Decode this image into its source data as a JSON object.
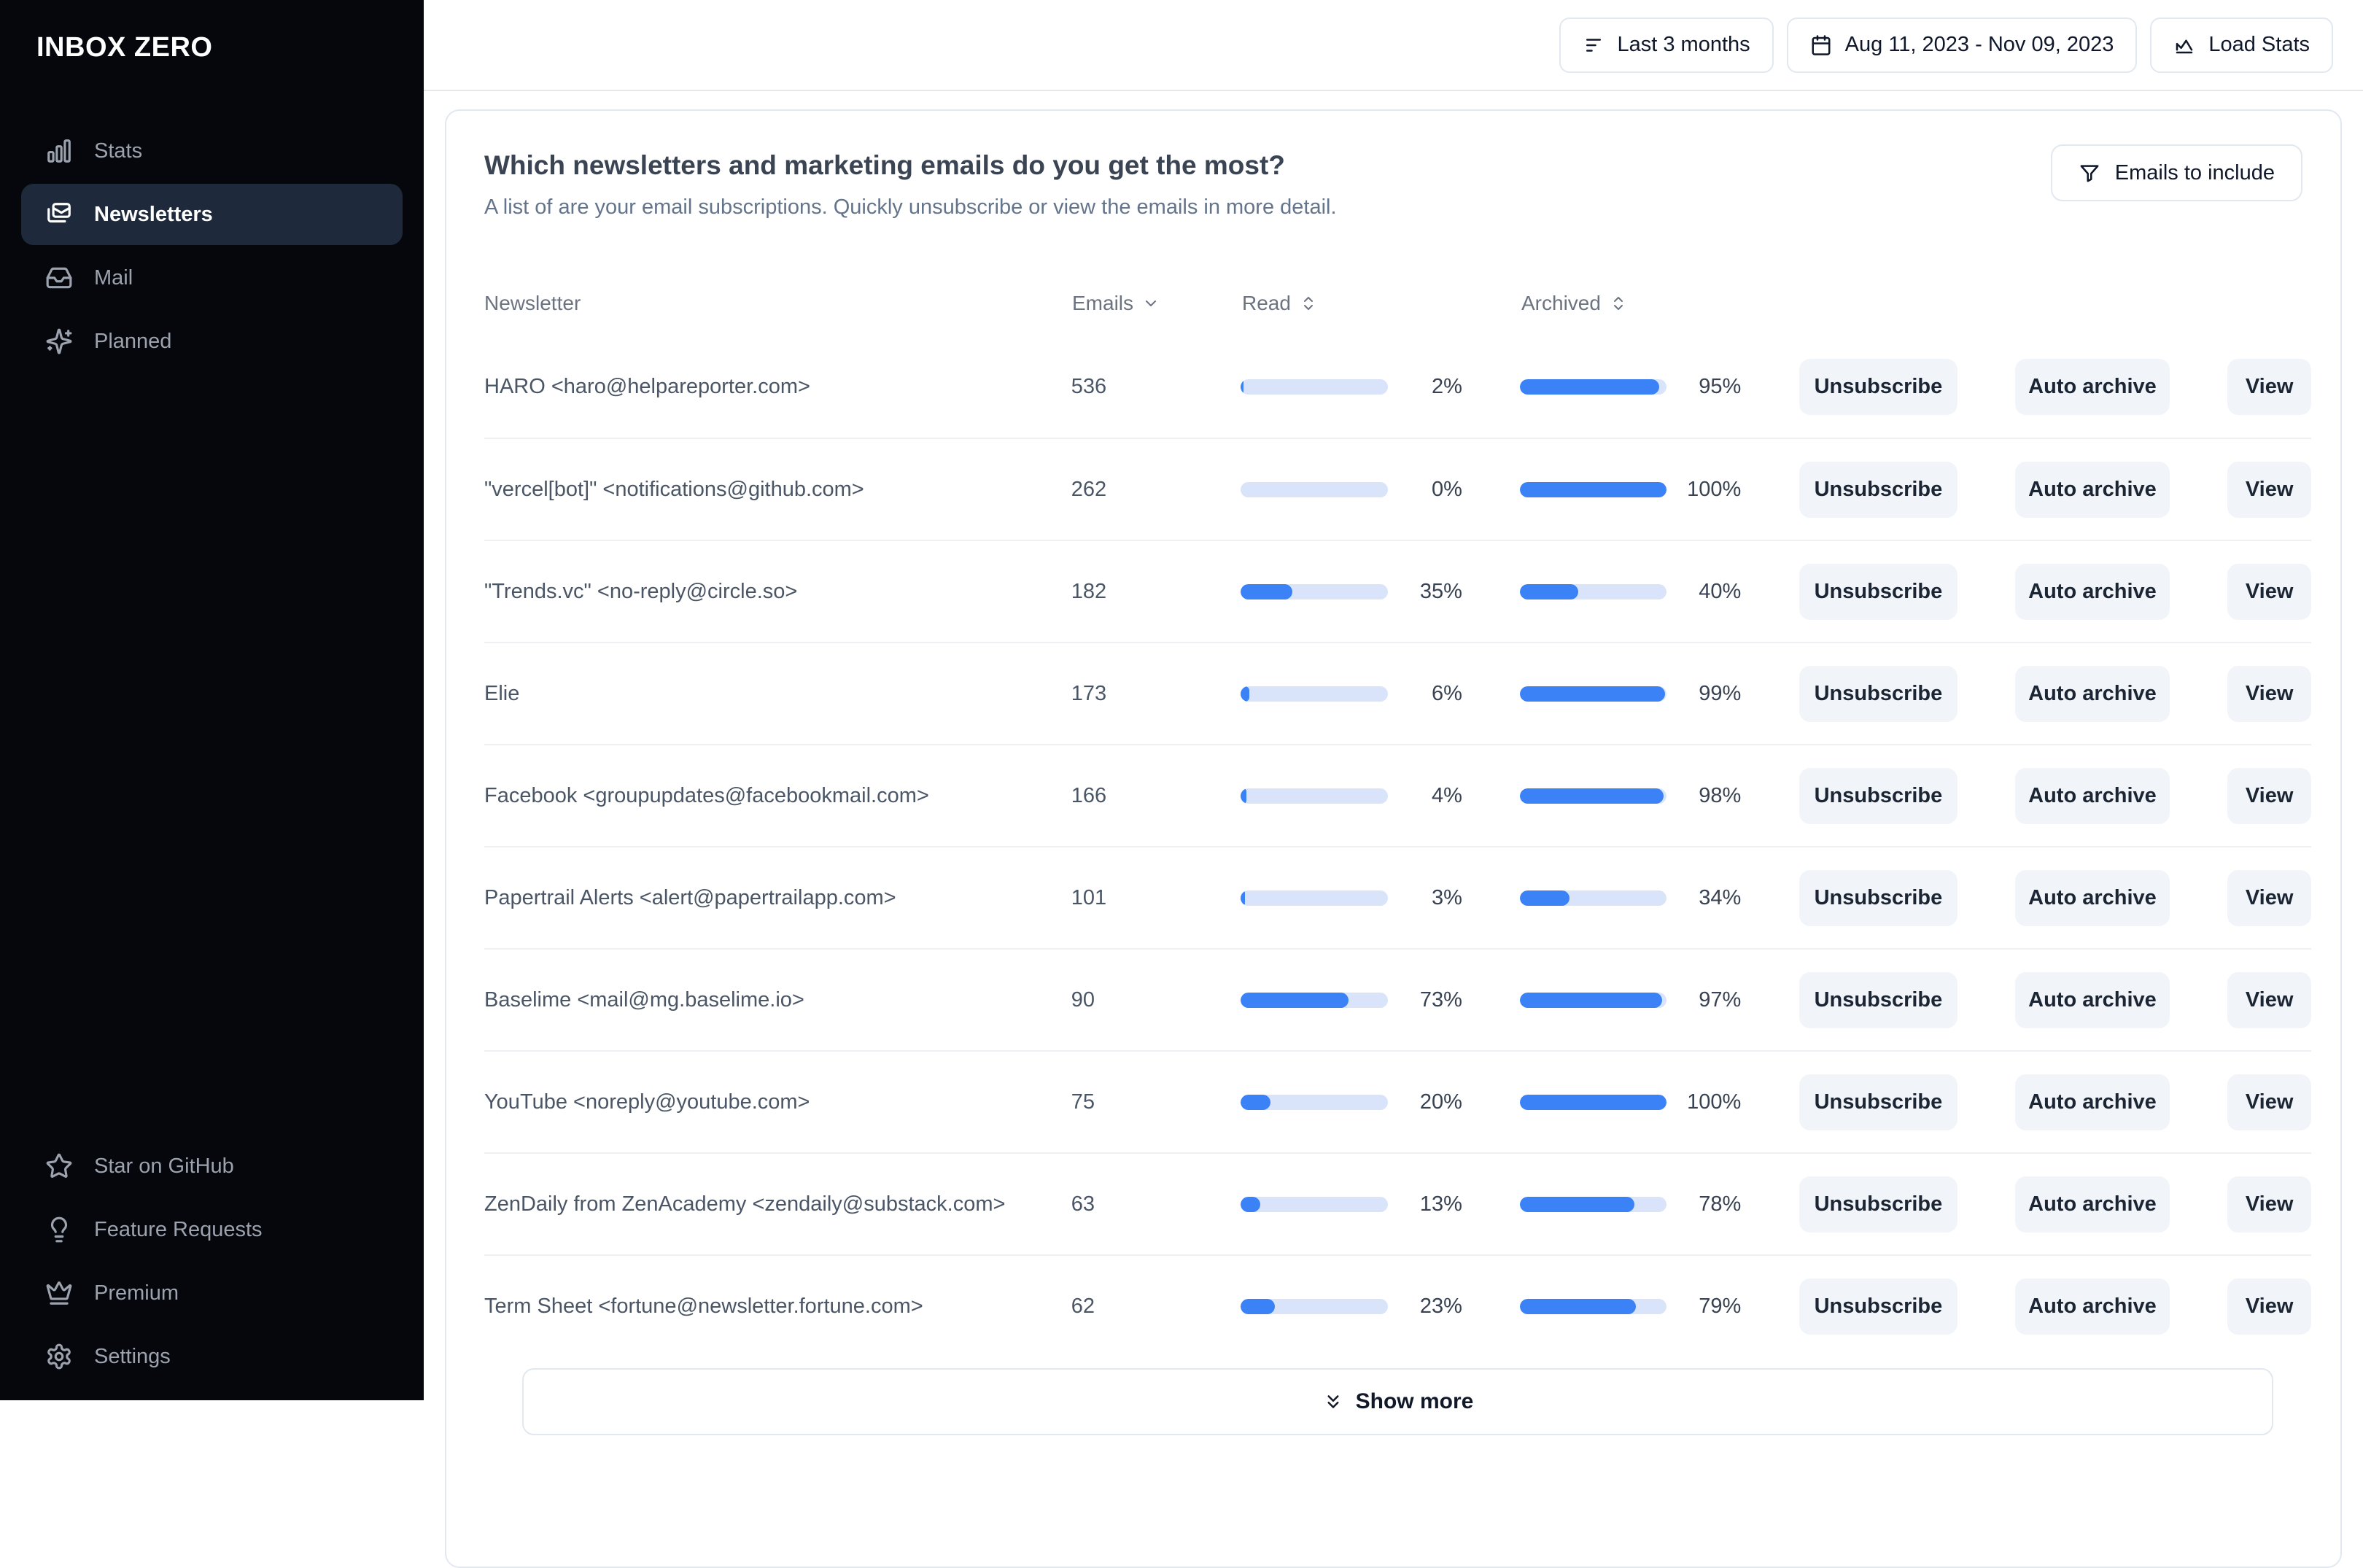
{
  "app": {
    "logo_text": "INBOX ZERO"
  },
  "sidebar": {
    "items": [
      {
        "icon": "bar-chart-icon",
        "label": "Stats",
        "active": false
      },
      {
        "icon": "mails-icon",
        "label": "Newsletters",
        "active": true
      },
      {
        "icon": "inbox-icon",
        "label": "Mail",
        "active": false
      },
      {
        "icon": "sparkles-icon",
        "label": "Planned",
        "active": false
      }
    ],
    "footer_items": [
      {
        "icon": "star-icon",
        "label": "Star on GitHub"
      },
      {
        "icon": "lightbulb-icon",
        "label": "Feature Requests"
      },
      {
        "icon": "crown-icon",
        "label": "Premium"
      },
      {
        "icon": "gear-icon",
        "label": "Settings"
      }
    ]
  },
  "topbar": {
    "range_button": {
      "icon": "filter-lines-icon",
      "label": "Last 3 months"
    },
    "date_button": {
      "icon": "calendar-icon",
      "label": "Aug 11, 2023 - Nov 09, 2023"
    },
    "load_button": {
      "icon": "line-chart-icon",
      "label": "Load Stats"
    }
  },
  "panel": {
    "title": "Which newsletters and marketing emails do you get the most?",
    "subtitle": "A list of are your email subscriptions. Quickly unsubscribe or view the emails in more detail.",
    "filter_button": {
      "icon": "funnel-icon",
      "label": "Emails to include"
    },
    "table": {
      "columns": {
        "newsletter": "Newsletter",
        "emails": "Emails",
        "read": "Read",
        "archived": "Archived"
      },
      "actions": {
        "unsubscribe": "Unsubscribe",
        "auto_archive": "Auto archive",
        "view": "View"
      },
      "rows": [
        {
          "name": "HARO <haro@helpareporter.com>",
          "emails": 536,
          "read_pct": 2,
          "archived_pct": 95
        },
        {
          "name": "\"vercel[bot]\" <notifications@github.com>",
          "emails": 262,
          "read_pct": 0,
          "archived_pct": 100
        },
        {
          "name": "\"Trends.vc\" <no-reply@circle.so>",
          "emails": 182,
          "read_pct": 35,
          "archived_pct": 40
        },
        {
          "name": "Elie",
          "emails": 173,
          "read_pct": 6,
          "archived_pct": 99
        },
        {
          "name": "Facebook <groupupdates@facebookmail.com>",
          "emails": 166,
          "read_pct": 4,
          "archived_pct": 98
        },
        {
          "name": "Papertrail Alerts <alert@papertrailapp.com>",
          "emails": 101,
          "read_pct": 3,
          "archived_pct": 34
        },
        {
          "name": "Baselime <mail@mg.baselime.io>",
          "emails": 90,
          "read_pct": 73,
          "archived_pct": 97
        },
        {
          "name": "YouTube <noreply@youtube.com>",
          "emails": 75,
          "read_pct": 20,
          "archived_pct": 100
        },
        {
          "name": "ZenDaily from ZenAcademy <zendaily@substack.com>",
          "emails": 63,
          "read_pct": 13,
          "archived_pct": 78
        },
        {
          "name": "Term Sheet <fortune@newsletter.fortune.com>",
          "emails": 62,
          "read_pct": 23,
          "archived_pct": 79
        }
      ],
      "show_more_label": "Show more"
    }
  },
  "colors": {
    "accent_blue": "#3b82f6",
    "bar_track": "#d9e4fb",
    "active_item_bg": "#1e293b",
    "sidebar_bg": "#05070c"
  }
}
